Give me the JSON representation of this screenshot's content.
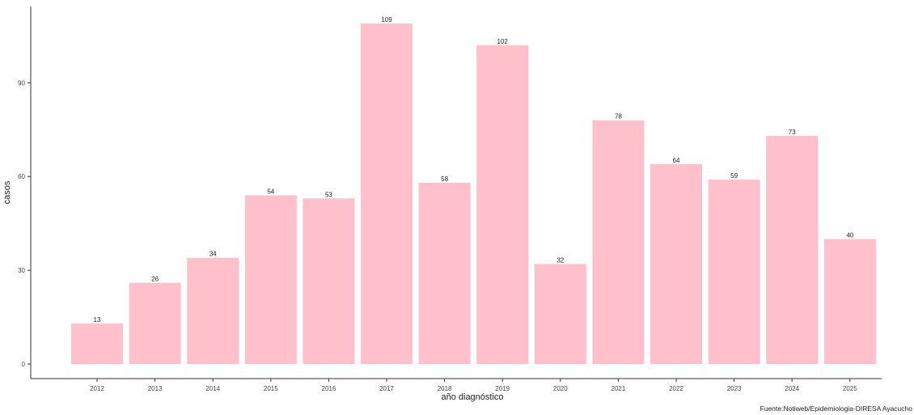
{
  "chart_data": {
    "type": "bar",
    "categories": [
      "2012",
      "2013",
      "2014",
      "2015",
      "2016",
      "2017",
      "2018",
      "2019",
      "2020",
      "2021",
      "2022",
      "2023",
      "2024",
      "2025"
    ],
    "values": [
      13,
      26,
      34,
      54,
      53,
      109,
      58,
      102,
      32,
      78,
      64,
      59,
      73,
      40
    ],
    "xlabel": "año diagnóstico",
    "ylabel": "casos",
    "ylim": [
      0,
      110
    ],
    "yticks": [
      0,
      30,
      60,
      90
    ],
    "caption": "Fuente:Notiweb/Epidemiologia-DIRESA Ayacucho",
    "bar_color": "#FFC0CB",
    "grid": false,
    "legend": "none"
  }
}
